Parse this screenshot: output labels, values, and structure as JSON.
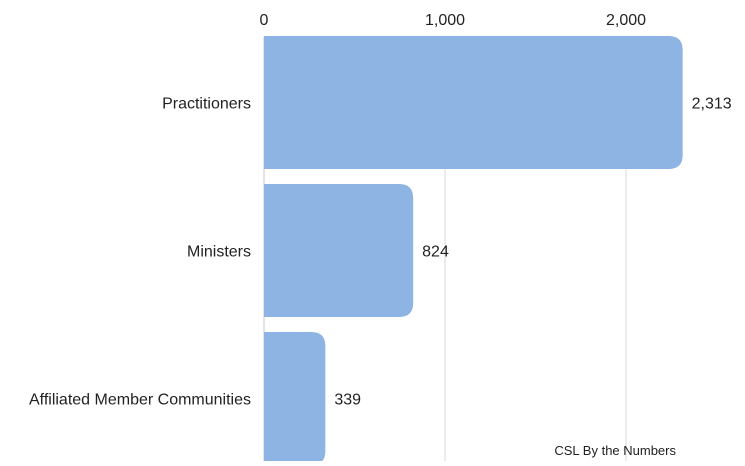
{
  "chart_data": {
    "type": "bar",
    "orientation": "horizontal",
    "categories": [
      "Practitioners",
      "Ministers",
      "Affiliated Member Communities"
    ],
    "values": [
      2313,
      824,
      339
    ],
    "value_labels": [
      "2,313",
      "824",
      "339"
    ],
    "xlim": [
      0,
      2313
    ],
    "xticks": [
      0,
      1000,
      2000
    ],
    "xtick_labels": [
      "0",
      "1,000",
      "2,000"
    ],
    "axis_position": "top",
    "grid": true,
    "bar_color": "#8db4e2",
    "grid_color": "#d9d9d9",
    "caption": "CSL By the Numbers"
  }
}
